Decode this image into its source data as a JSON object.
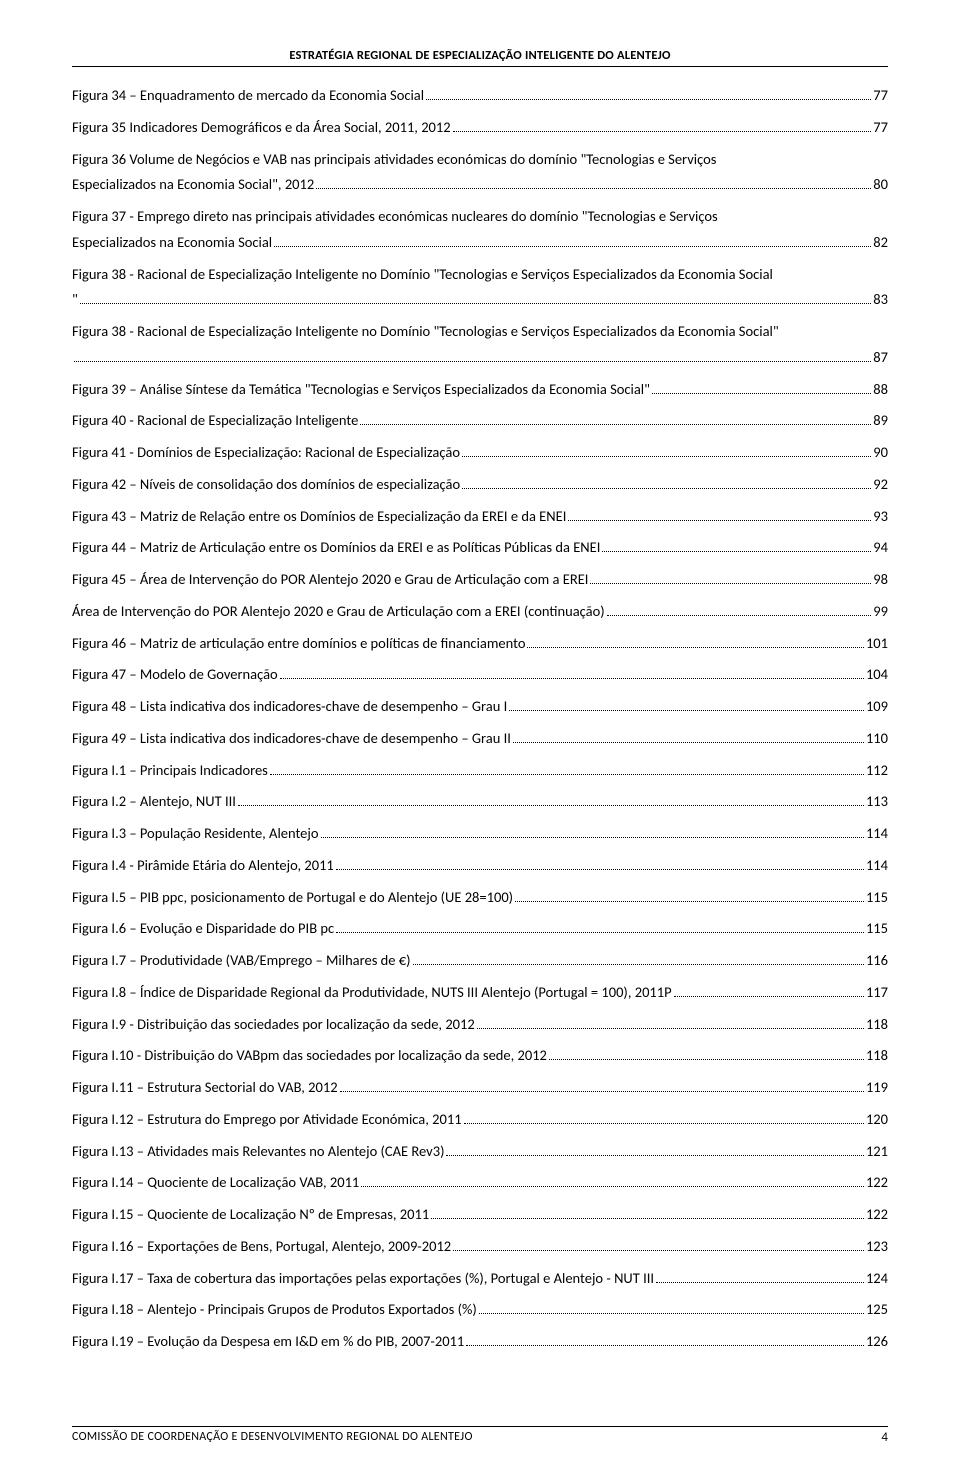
{
  "header": "ESTRATÉGIA REGIONAL DE ESPECIALIZAÇÃO INTELIGENTE DO ALENTEJO",
  "footer_text": "COMISSÃO DE COORDENAÇÃO E DESENVOLVIMENTO REGIONAL DO ALENTEJO",
  "footer_page": "4",
  "entries": [
    {
      "text": "Figura 34 – Enquadramento de mercado da Economia Social",
      "page": "77",
      "multi": false
    },
    {
      "text": "Figura 35 Indicadores Demográficos e da Área Social, 2011, 2012",
      "page": "77",
      "multi": false
    },
    {
      "line1": "Figura 36 Volume de Negócios e VAB nas principais atividades económicas do domínio \"Tecnologias e Serviços",
      "line2": "Especializados na Economia Social\", 2012",
      "page": "80",
      "multi": true
    },
    {
      "line1": "Figura 37 - Emprego direto nas principais atividades económicas nucleares do domínio \"Tecnologias e Serviços",
      "line2": "Especializados na Economia Social",
      "page": "82",
      "multi": true
    },
    {
      "line1": "Figura 38 - Racional de Especialização Inteligente no Domínio \"Tecnologias e Serviços Especializados da Economia Social",
      "line2": "\"",
      "page": "83",
      "multi": true
    },
    {
      "line1": "Figura 38 - Racional de Especialização Inteligente no Domínio \"Tecnologias e Serviços Especializados da Economia Social\"",
      "line2": "",
      "page": "87",
      "multi": true
    },
    {
      "text": "Figura 39 – Análise Síntese da Temática \"Tecnologias e Serviços Especializados da Economia Social\"",
      "page": "88",
      "multi": false
    },
    {
      "text": "Figura 40 - Racional de Especialização Inteligente",
      "page": "89",
      "multi": false
    },
    {
      "text": "Figura 41 - Domínios de Especialização: Racional de Especialização",
      "page": "90",
      "multi": false
    },
    {
      "text": "Figura 42 – Níveis de consolidação dos domínios de especialização",
      "page": "92",
      "multi": false
    },
    {
      "text": "Figura 43 – Matriz de Relação entre os Domínios de Especialização da EREI e da ENEI",
      "page": "93",
      "multi": false
    },
    {
      "text": "Figura 44 – Matriz de Articulação entre os Domínios da EREI e as Políticas Públicas da ENEI",
      "page": "94",
      "multi": false
    },
    {
      "text": "Figura 45 – Área de Intervenção do POR Alentejo 2020 e Grau de Articulação com a EREI",
      "page": "98",
      "multi": false
    },
    {
      "text": "Área de Intervenção do POR Alentejo 2020 e Grau de Articulação com a EREI (continuação)",
      "page": "99",
      "multi": false
    },
    {
      "text": "Figura 46 – Matriz de articulação entre domínios e políticas de financiamento",
      "page": "101",
      "multi": false
    },
    {
      "text": "Figura 47 – Modelo de Governação",
      "page": "104",
      "multi": false
    },
    {
      "text": "Figura 48 – Lista indicativa dos indicadores-chave de desempenho – Grau I",
      "page": "109",
      "multi": false
    },
    {
      "text": "Figura 49 – Lista indicativa dos indicadores-chave de desempenho – Grau II",
      "page": "110",
      "multi": false
    },
    {
      "text": "Figura I.1 – Principais Indicadores",
      "page": "112",
      "multi": false
    },
    {
      "text": "Figura I.2 – Alentejo, NUT III",
      "page": "113",
      "multi": false
    },
    {
      "text": "Figura I.3 – População Residente, Alentejo",
      "page": "114",
      "multi": false
    },
    {
      "text": "Figura I.4 - Pirâmide Etária do Alentejo, 2011",
      "page": "114",
      "multi": false
    },
    {
      "text": "Figura I.5 – PIB ppc, posicionamento de Portugal e do Alentejo (UE 28=100)",
      "page": "115",
      "multi": false
    },
    {
      "text": "Figura I.6 – Evolução e Disparidade do PIB pc",
      "page": "115",
      "multi": false
    },
    {
      "text": "Figura I.7 – Produtividade (VAB/Emprego – Milhares de €)",
      "page": "116",
      "multi": false
    },
    {
      "text": "Figura I.8 – Índice de Disparidade Regional da Produtividade, NUTS III Alentejo (Portugal = 100), 2011P",
      "page": "117",
      "multi": false
    },
    {
      "text": "Figura I.9 - Distribuição das sociedades por localização da sede, 2012",
      "page": "118",
      "multi": false
    },
    {
      "text": "Figura I.10 -  Distribuição do VABpm das sociedades por localização da sede, 2012",
      "page": "118",
      "multi": false
    },
    {
      "text": "Figura I.11 – Estrutura Sectorial do VAB, 2012",
      "page": "119",
      "multi": false
    },
    {
      "text": "Figura I.12 – Estrutura do Emprego por Atividade Económica, 2011",
      "page": "120",
      "multi": false
    },
    {
      "text": "Figura I.13 – Atividades mais Relevantes no Alentejo (CAE Rev3)",
      "page": "121",
      "multi": false
    },
    {
      "text": "Figura I.14 – Quociente de Localização VAB, 2011",
      "page": "122",
      "multi": false
    },
    {
      "text": "Figura I.15 – Quociente de Localização Nº de Empresas, 2011",
      "page": "122",
      "multi": false
    },
    {
      "text": "Figura I.16 – Exportações de Bens, Portugal, Alentejo, 2009-2012",
      "page": "123",
      "multi": false
    },
    {
      "text": "Figura I.17 – Taxa de cobertura das importações pelas exportações (%), Portugal e Alentejo - NUT III",
      "page": "124",
      "multi": false
    },
    {
      "text": "Figura I.18 – Alentejo - Principais Grupos de Produtos Exportados (%)",
      "page": "125",
      "multi": false
    },
    {
      "text": "Figura I.19 – Evolução da Despesa em I&D em % do PIB, 2007-2011",
      "page": "126",
      "multi": false
    }
  ]
}
